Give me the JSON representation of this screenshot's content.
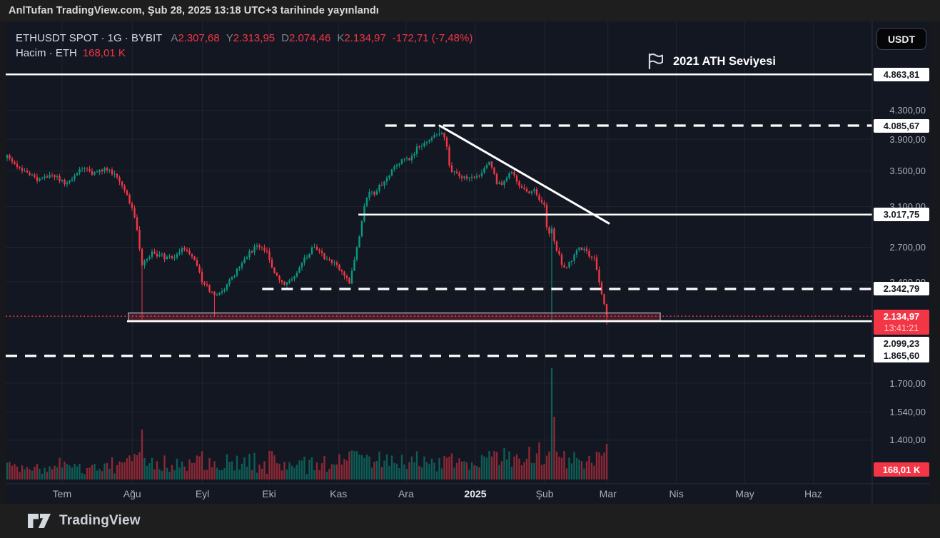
{
  "top_bar": {
    "attribution": "AnlTufan TradingView.com, Şub 28, 2025 13:18 UTC+3 tarihinde yayınlandı"
  },
  "legend": {
    "title": "ETHUSDT SPOT · 1G · BYBIT",
    "ohlc": [
      {
        "label": "A",
        "value": "2.307,68"
      },
      {
        "label": "Y",
        "value": "2.313,95"
      },
      {
        "label": "D",
        "value": "2.074,46"
      },
      {
        "label": "K",
        "value": "2.134,97"
      }
    ],
    "change": "-172,71 (-7,48%)",
    "volume_label": "Hacim · ETH",
    "volume_value": "168,01 K"
  },
  "currency_button": "USDT",
  "annotation": {
    "flag_label": "2021 ATH Seviyesi"
  },
  "price_axis": {
    "gray_labels": [
      {
        "text": "4.300,00",
        "price": 4300
      },
      {
        "text": "3.900,00",
        "price": 3900
      },
      {
        "text": "3.500,00",
        "price": 3500
      },
      {
        "text": "3.100,00",
        "price": 3100
      },
      {
        "text": "2.700,00",
        "price": 2700
      },
      {
        "text": "2.400,00",
        "price": 2400
      },
      {
        "text": "1.700,00",
        "price": 1700
      },
      {
        "text": "1.540,00",
        "price": 1540
      },
      {
        "text": "1.400,00",
        "price": 1400
      }
    ],
    "white_labels": [
      {
        "text": "4.863,81",
        "price": 4863.81
      },
      {
        "text": "4.085,67",
        "price": 4085.67
      },
      {
        "text": "3.017,75",
        "price": 3017.75
      },
      {
        "text": "2.342,79",
        "price": 2342.79
      },
      {
        "text": "2.099,23",
        "price": 2099.23,
        "stack_below_current": true
      },
      {
        "text": "1.865,60",
        "price": 1865.6
      }
    ],
    "current": {
      "text": "2.134,97",
      "countdown": "13:41:21",
      "price": 2134.97
    },
    "volume_badge": {
      "text": "168,01 K"
    }
  },
  "time_axis": {
    "labels": [
      {
        "text": "Tem",
        "f": 0.065
      },
      {
        "text": "Ağu",
        "f": 0.146
      },
      {
        "text": "Eyl",
        "f": 0.227
      },
      {
        "text": "Eki",
        "f": 0.304
      },
      {
        "text": "Kas",
        "f": 0.384
      },
      {
        "text": "Ara",
        "f": 0.462
      },
      {
        "text": "2025",
        "f": 0.542,
        "emphasis": true
      },
      {
        "text": "Şub",
        "f": 0.622
      },
      {
        "text": "Mar",
        "f": 0.695
      },
      {
        "text": "Nis",
        "f": 0.774
      },
      {
        "text": "May",
        "f": 0.853
      },
      {
        "text": "Haz",
        "f": 0.932
      }
    ]
  },
  "footer": {
    "brand": "TradingView"
  },
  "colors": {
    "up": "#089981",
    "down": "#f23645",
    "volume_up": "rgba(8,153,129,0.55)",
    "volume_down": "rgba(242,54,69,0.55)",
    "line_white": "#ffffff",
    "current_price_red": "#f23645",
    "grid": "rgba(255,255,255,0.055)",
    "axis_border": "#2a2e39",
    "chart_bg": "#131722"
  },
  "chart_data": {
    "type": "candlestick",
    "symbol": "ETHUSDT SPOT",
    "exchange": "BYBIT",
    "interval": "1G",
    "quote_currency": "USDT",
    "scale": "log",
    "last_bar": {
      "open": 2307.68,
      "high": 2313.95,
      "low": 2074.46,
      "close": 2134.97,
      "change": -172.71,
      "change_pct": -7.48,
      "volume_eth": "168,01 K",
      "date": "Şub 28, 2025"
    },
    "y_axis_range": [
      1330,
      5050
    ],
    "y_gridline_prices": [
      4300,
      3900,
      3500,
      3100,
      2700,
      2400,
      1700,
      1540,
      1400
    ],
    "levels": [
      {
        "name": "ath-2021",
        "label": "2021 ATH Seviyesi",
        "price": 4863.81,
        "style": "solid",
        "x0": 0,
        "x1": 1
      },
      {
        "name": "top-dec-2024",
        "price": 4085.67,
        "style": "dashed",
        "x0": 0.438,
        "x1": 1
      },
      {
        "name": "support-3017",
        "price": 3017.75,
        "style": "solid",
        "x0": 0.407,
        "x1": 1
      },
      {
        "name": "support-2342",
        "price": 2342.79,
        "style": "dashed",
        "x0": 0.296,
        "x1": 1
      },
      {
        "name": "current-price-line",
        "price": 2134.97,
        "style": "dotted_red",
        "x0": 0,
        "x1": 1
      },
      {
        "name": "support-2099",
        "price": 2099.23,
        "style": "solid",
        "x0": 0.14,
        "x1": 1
      },
      {
        "name": "support-1865",
        "price": 1865.6,
        "style": "dashed",
        "x0": 0,
        "x1": 1
      }
    ],
    "zone": {
      "name": "demand-zone",
      "price_top": 2159,
      "price_bottom": 2104,
      "x0": 0.1417,
      "x1": 0.7554
    },
    "trendline": {
      "name": "descending-trendline",
      "x0": 0.5008,
      "price0": 4085.67,
      "x1": 0.696,
      "price1": 2930
    },
    "price_path_anchors": [
      [
        0.002,
        3675
      ],
      [
        0.018,
        3500
      ],
      [
        0.039,
        3390
      ],
      [
        0.055,
        3460
      ],
      [
        0.072,
        3340
      ],
      [
        0.086,
        3545
      ],
      [
        0.1,
        3480
      ],
      [
        0.117,
        3530
      ],
      [
        0.132,
        3380
      ],
      [
        0.146,
        3100
      ],
      [
        0.152,
        2850
      ],
      [
        0.157,
        2550
      ],
      [
        0.168,
        2650
      ],
      [
        0.181,
        2620
      ],
      [
        0.194,
        2585
      ],
      [
        0.204,
        2680
      ],
      [
        0.216,
        2620
      ],
      [
        0.227,
        2400
      ],
      [
        0.241,
        2290
      ],
      [
        0.253,
        2350
      ],
      [
        0.267,
        2500
      ],
      [
        0.28,
        2650
      ],
      [
        0.292,
        2710
      ],
      [
        0.301,
        2650
      ],
      [
        0.313,
        2430
      ],
      [
        0.321,
        2375
      ],
      [
        0.333,
        2460
      ],
      [
        0.345,
        2600
      ],
      [
        0.356,
        2715
      ],
      [
        0.368,
        2600
      ],
      [
        0.379,
        2570
      ],
      [
        0.389,
        2480
      ],
      [
        0.397,
        2400
      ],
      [
        0.405,
        2680
      ],
      [
        0.412,
        3010
      ],
      [
        0.418,
        3245
      ],
      [
        0.427,
        3250
      ],
      [
        0.435,
        3370
      ],
      [
        0.443,
        3460
      ],
      [
        0.451,
        3585
      ],
      [
        0.46,
        3625
      ],
      [
        0.468,
        3670
      ],
      [
        0.476,
        3810
      ],
      [
        0.484,
        3855
      ],
      [
        0.493,
        3950
      ],
      [
        0.501,
        3990
      ],
      [
        0.507,
        3920
      ],
      [
        0.513,
        3500
      ],
      [
        0.521,
        3460
      ],
      [
        0.53,
        3420
      ],
      [
        0.538,
        3460
      ],
      [
        0.546,
        3420
      ],
      [
        0.552,
        3550
      ],
      [
        0.558,
        3590
      ],
      [
        0.567,
        3370
      ],
      [
        0.572,
        3330
      ],
      [
        0.579,
        3460
      ],
      [
        0.584,
        3500
      ],
      [
        0.59,
        3370
      ],
      [
        0.596,
        3330
      ],
      [
        0.604,
        3250
      ],
      [
        0.61,
        3290
      ],
      [
        0.616,
        3170
      ],
      [
        0.622,
        3095
      ],
      [
        0.626,
        2790
      ],
      [
        0.63,
        2870
      ],
      [
        0.636,
        2680
      ],
      [
        0.642,
        2540
      ],
      [
        0.646,
        2510
      ],
      [
        0.65,
        2570
      ],
      [
        0.654,
        2600
      ],
      [
        0.659,
        2665
      ],
      [
        0.664,
        2700
      ],
      [
        0.669,
        2665
      ],
      [
        0.674,
        2630
      ],
      [
        0.679,
        2600
      ],
      [
        0.684,
        2420
      ],
      [
        0.688,
        2290
      ],
      [
        0.691,
        2200
      ],
      [
        0.694,
        2134.97
      ]
    ],
    "wick_events": [
      {
        "f": 0.157,
        "low": 2112
      },
      {
        "f": 0.241,
        "low": 2140
      },
      {
        "f": 0.501,
        "high": 4085.67
      },
      {
        "f": 0.558,
        "high": 3610
      },
      {
        "f": 0.63,
        "low": 2090
      },
      {
        "f": 0.694,
        "low": 2074.46
      }
    ],
    "volume_spikes": [
      {
        "f": 0.157,
        "h": 70
      },
      {
        "f": 0.412,
        "h": 34
      },
      {
        "f": 0.427,
        "h": 26
      },
      {
        "f": 0.501,
        "h": 30
      },
      {
        "f": 0.558,
        "h": 40
      },
      {
        "f": 0.576,
        "h": 44
      },
      {
        "f": 0.604,
        "h": 46
      },
      {
        "f": 0.616,
        "h": 52
      },
      {
        "f": 0.63,
        "h": 156
      },
      {
        "f": 0.634,
        "h": 88
      },
      {
        "f": 0.646,
        "h": 40
      },
      {
        "f": 0.684,
        "h": 38
      },
      {
        "f": 0.694,
        "h": 50
      }
    ]
  }
}
